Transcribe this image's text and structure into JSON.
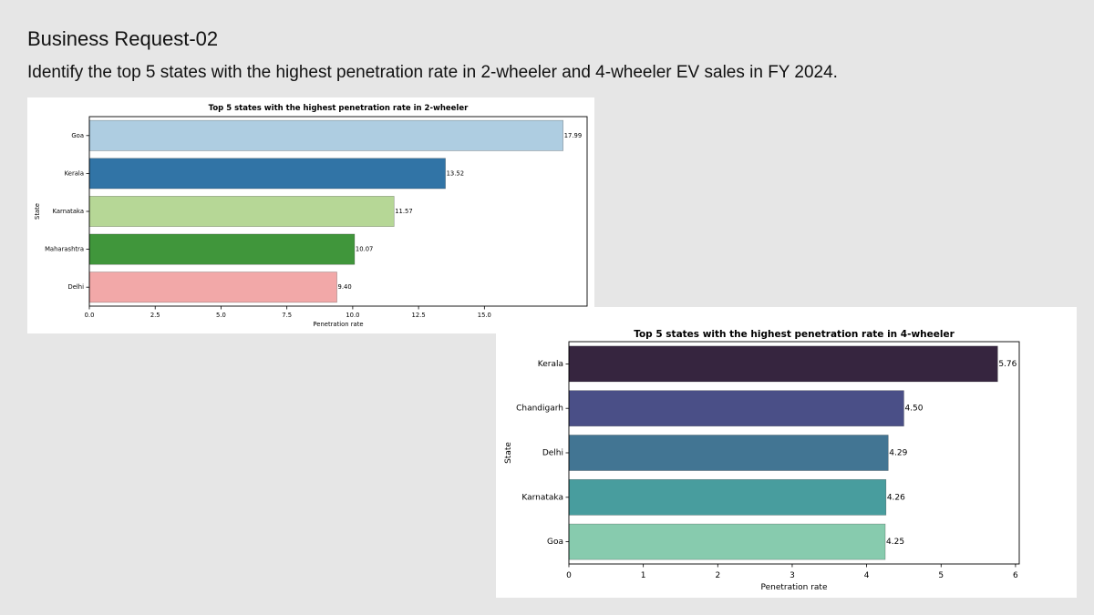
{
  "slide": {
    "title": "Business Request-02",
    "subtitle": "Identify the top 5 states with the highest penetration rate in 2-wheeler and 4-wheeler EV sales in FY 2024."
  },
  "chart_data": [
    {
      "id": "two_wheeler",
      "type": "bar",
      "orientation": "horizontal",
      "title": "Top 5 states with the highest penetration rate in 2-wheeler",
      "xlabel": "Penetration rate",
      "ylabel": "State",
      "categories": [
        "Goa",
        "Kerala",
        "Karnataka",
        "Maharashtra",
        "Delhi"
      ],
      "values": [
        17.99,
        13.52,
        11.57,
        10.07,
        9.4
      ],
      "value_labels": [
        "17.99",
        "13.52",
        "11.57",
        "10.07",
        "9.40"
      ],
      "colors": [
        "#aecde1",
        "#3174a6",
        "#b6d796",
        "#40963b",
        "#f2a8a8"
      ],
      "xlim": [
        0,
        18.9
      ],
      "xticks": [
        0.0,
        2.5,
        5.0,
        7.5,
        10.0,
        12.5,
        15.0
      ],
      "xtick_labels": [
        "0.0",
        "2.5",
        "5.0",
        "7.5",
        "10.0",
        "12.5",
        "15.0"
      ]
    },
    {
      "id": "four_wheeler",
      "type": "bar",
      "orientation": "horizontal",
      "title": "Top 5 states with the highest penetration rate in 4-wheeler",
      "xlabel": "Penetration rate",
      "ylabel": "State",
      "categories": [
        "Kerala",
        "Chandigarh",
        "Delhi",
        "Karnataka",
        "Goa"
      ],
      "values": [
        5.76,
        4.5,
        4.29,
        4.26,
        4.25
      ],
      "value_labels": [
        "5.76",
        "4.50",
        "4.29",
        "4.26",
        "4.25"
      ],
      "colors": [
        "#36253f",
        "#4a4f87",
        "#427593",
        "#489d9e",
        "#87cbae"
      ],
      "xlim": [
        0,
        6.05
      ],
      "xticks": [
        0,
        1,
        2,
        3,
        4,
        5,
        6
      ],
      "xtick_labels": [
        "0",
        "1",
        "2",
        "3",
        "4",
        "5",
        "6"
      ]
    }
  ]
}
